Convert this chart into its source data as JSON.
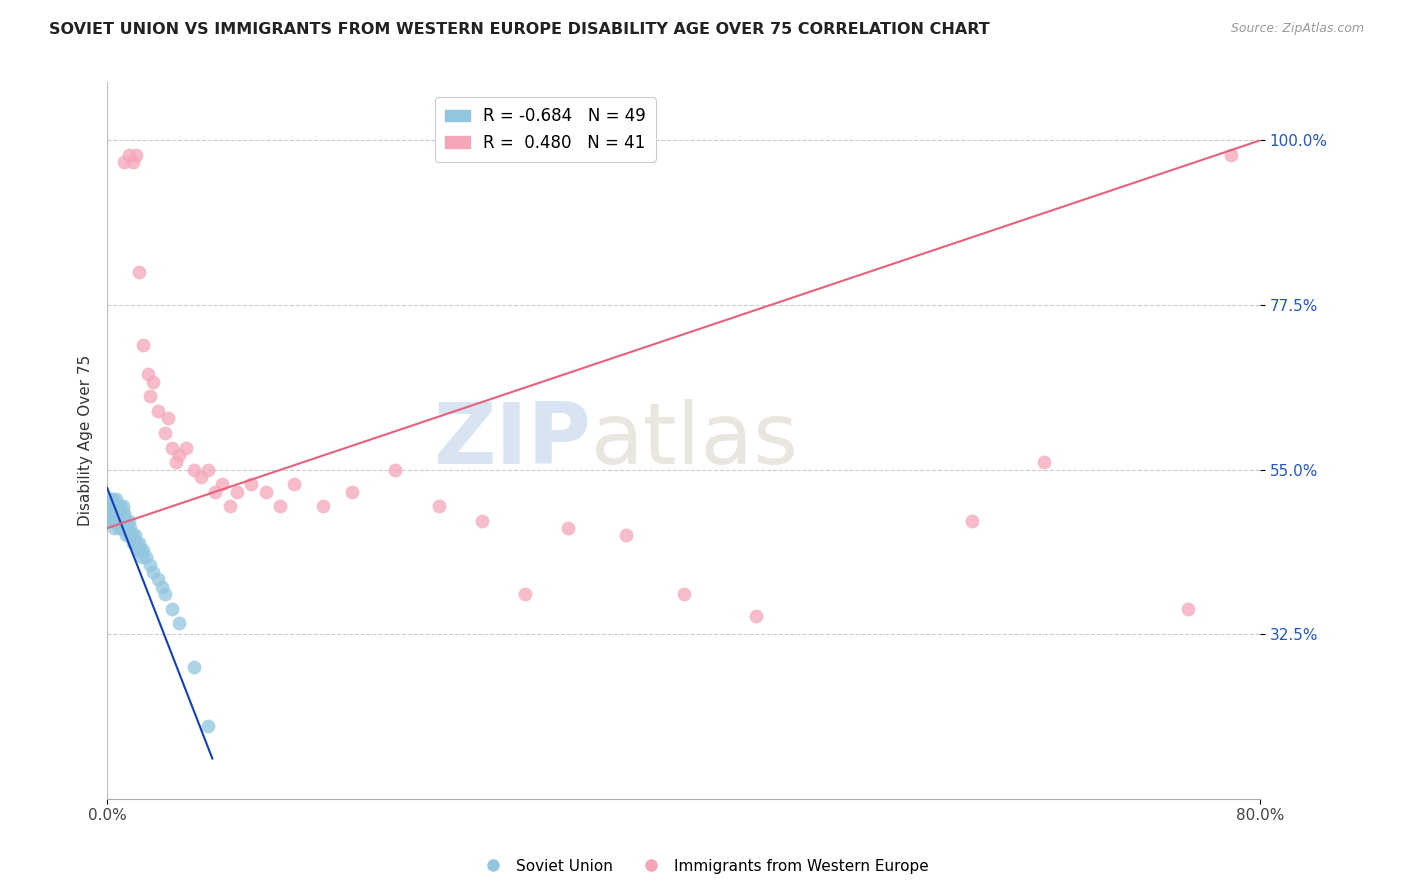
{
  "title": "SOVIET UNION VS IMMIGRANTS FROM WESTERN EUROPE DISABILITY AGE OVER 75 CORRELATION CHART",
  "source": "Source: ZipAtlas.com",
  "ylabel": "Disability Age Over 75",
  "ytick_labels": [
    "100.0%",
    "77.5%",
    "55.0%",
    "32.5%"
  ],
  "ytick_values": [
    1.0,
    0.775,
    0.55,
    0.325
  ],
  "xmin": 0.0,
  "xmax": 0.8,
  "ymin": 0.1,
  "ymax": 1.08,
  "legend_r1": "R = -0.684",
  "legend_n1": "N = 49",
  "legend_r2": "R =  0.480",
  "legend_n2": "N = 41",
  "color_blue": "#92c5de",
  "color_pink": "#f4a6b8",
  "line_color_blue": "#1040c0",
  "line_color_pink": "#e8607a",
  "watermark_zip": "ZIP",
  "watermark_atlas": "atlas",
  "soviet_x": [
    0.001,
    0.002,
    0.002,
    0.003,
    0.003,
    0.004,
    0.004,
    0.005,
    0.005,
    0.005,
    0.006,
    0.006,
    0.007,
    0.007,
    0.008,
    0.008,
    0.009,
    0.009,
    0.01,
    0.01,
    0.011,
    0.011,
    0.012,
    0.012,
    0.013,
    0.013,
    0.014,
    0.015,
    0.015,
    0.016,
    0.017,
    0.018,
    0.019,
    0.02,
    0.021,
    0.022,
    0.023,
    0.024,
    0.025,
    0.027,
    0.03,
    0.032,
    0.035,
    0.038,
    0.04,
    0.045,
    0.05,
    0.06,
    0.07
  ],
  "soviet_y": [
    0.5,
    0.49,
    0.51,
    0.48,
    0.5,
    0.49,
    0.51,
    0.48,
    0.5,
    0.47,
    0.49,
    0.51,
    0.48,
    0.5,
    0.47,
    0.49,
    0.48,
    0.5,
    0.47,
    0.49,
    0.48,
    0.5,
    0.47,
    0.49,
    0.46,
    0.48,
    0.47,
    0.46,
    0.48,
    0.47,
    0.46,
    0.45,
    0.46,
    0.45,
    0.44,
    0.45,
    0.44,
    0.43,
    0.44,
    0.43,
    0.42,
    0.41,
    0.4,
    0.39,
    0.38,
    0.36,
    0.34,
    0.28,
    0.2
  ],
  "western_x": [
    0.012,
    0.015,
    0.018,
    0.02,
    0.022,
    0.025,
    0.028,
    0.03,
    0.032,
    0.035,
    0.04,
    0.042,
    0.045,
    0.048,
    0.05,
    0.055,
    0.06,
    0.065,
    0.07,
    0.075,
    0.08,
    0.085,
    0.09,
    0.1,
    0.11,
    0.12,
    0.13,
    0.15,
    0.17,
    0.2,
    0.23,
    0.26,
    0.29,
    0.32,
    0.36,
    0.4,
    0.45,
    0.6,
    0.65,
    0.75,
    0.78
  ],
  "western_y": [
    0.97,
    0.98,
    0.97,
    0.98,
    0.82,
    0.72,
    0.68,
    0.65,
    0.67,
    0.63,
    0.6,
    0.62,
    0.58,
    0.56,
    0.57,
    0.58,
    0.55,
    0.54,
    0.55,
    0.52,
    0.53,
    0.5,
    0.52,
    0.53,
    0.52,
    0.5,
    0.53,
    0.5,
    0.52,
    0.55,
    0.5,
    0.48,
    0.38,
    0.47,
    0.46,
    0.38,
    0.35,
    0.48,
    0.56,
    0.36,
    0.98
  ],
  "blue_line_x": [
    0.0,
    0.073
  ],
  "blue_line_y": [
    0.525,
    0.155
  ],
  "pink_line_x": [
    0.0,
    0.8
  ],
  "pink_line_y": [
    0.47,
    1.0
  ]
}
